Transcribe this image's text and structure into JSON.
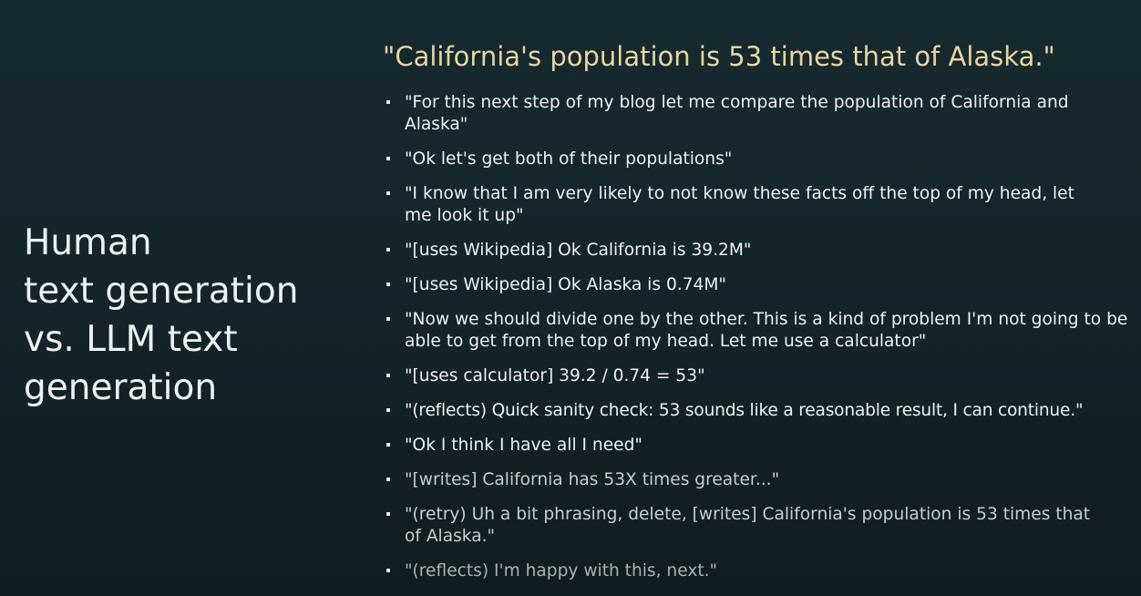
{
  "left_title": {
    "lines": [
      "Human",
      "text generation",
      "vs. LLM text",
      "generation"
    ]
  },
  "quote_title": "\"California's population is 53 times that of Alaska.\"",
  "bullets": [
    "\"For this next step of my blog let me compare the population of California and Alaska\"",
    "\"Ok let's get both of their populations\"",
    "\"I know that I am very likely to not know these facts off the top of my head, let me look it up\"",
    "\"[uses Wikipedia] Ok California is 39.2M\"",
    "\"[uses Wikipedia] Ok Alaska is 0.74M\"",
    "\"Now we should divide one by the other. This is a kind of problem I'm not going to be able to get from the top of my head. Let me use a calculator\"",
    "\"[uses calculator] 39.2 / 0.74 = 53\"",
    "\"(reflects) Quick sanity check: 53 sounds like a reasonable result, I can continue.\"",
    "\"Ok I think I have all I need\"",
    "\"[writes] California has 53X times greater...\"",
    "\"(retry) Uh a bit phrasing, delete, [writes] California's population is 53 times that of Alaska.\"",
    "\"(reflects) I'm happy with this, next.\""
  ]
}
